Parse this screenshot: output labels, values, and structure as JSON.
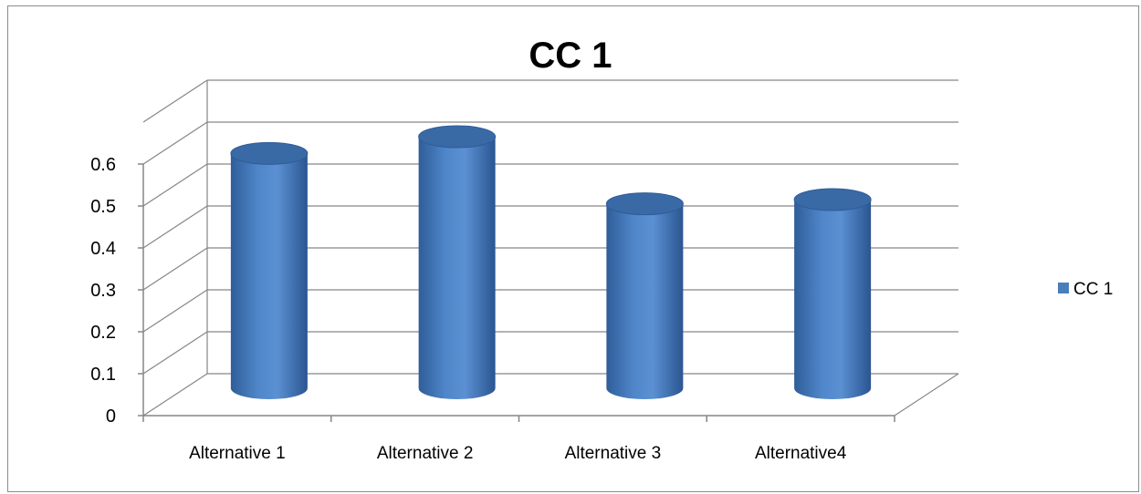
{
  "chart_data": {
    "type": "bar",
    "style": "3d-cylinder",
    "title": "CC 1",
    "categories": [
      "Alternative 1",
      "Alternative 2",
      "Alternative 3",
      "Alternative4"
    ],
    "series": [
      {
        "name": "CC 1",
        "values": [
          0.56,
          0.6,
          0.44,
          0.45
        ]
      }
    ],
    "ylim": [
      0,
      0.6
    ],
    "yticks": [
      "0",
      "0.1",
      "0.2",
      "0.3",
      "0.4",
      "0.5",
      "0.6"
    ],
    "grid": true,
    "legend_position": "right",
    "colors": {
      "bar": "#4a7ebb",
      "bar_top": "#3a6aa6",
      "grid": "#868686"
    }
  }
}
